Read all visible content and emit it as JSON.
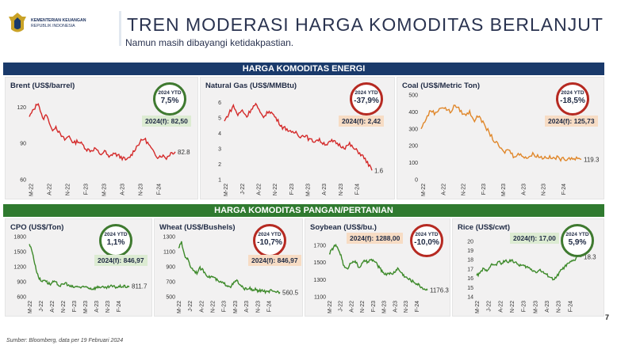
{
  "logo": {
    "line1": "KEMENTERIAN KEUANGAN",
    "line2": "REPUBLIK INDONESIA"
  },
  "header": {
    "title": "TREN MODERASI HARGA KOMODITAS BERLANJUT",
    "subtitle": "Namun masih dibayangi ketidakpastian."
  },
  "bands": {
    "energy": "HARGA KOMODITAS ENERGI",
    "food": "HARGA KOMODITAS PANGAN/PERTANIAN"
  },
  "footer": {
    "source": "Sumber: Bloomberg, data per 19 Februari 2024",
    "page": "7"
  },
  "colors": {
    "navy": "#1a3a6b",
    "green_band": "#2f7a2f",
    "line_red": "#d42a2a",
    "line_orange": "#e0872a",
    "line_green": "#3d8a2a",
    "circle_green": "#3f7a30",
    "circle_red": "#b62a22"
  },
  "chart_data": [
    {
      "id": "brent",
      "type": "line",
      "title": "Brent (US$/barrel)",
      "color": "#d42a2a",
      "ylim": [
        60,
        130
      ],
      "yticks": [
        60,
        90,
        120
      ],
      "last_label": "82.8",
      "xtick_labels": [
        "M-22",
        "A-22",
        "N-22",
        "F-23",
        "M-23",
        "A-23",
        "N-23",
        "F-24"
      ],
      "ytd_label": "2024 YTD",
      "ytd_value": "7,5%",
      "ytd_color": "green",
      "forecast": "2024(f): 82,50",
      "forecast_style": "gr",
      "values": [
        112,
        118,
        124,
        110,
        114,
        101,
        104,
        97,
        93,
        96,
        90,
        92,
        89,
        85,
        84,
        86,
        80,
        84,
        78,
        82,
        80,
        78,
        76,
        80,
        86,
        91,
        94,
        89,
        83,
        79,
        80,
        78,
        82,
        83
      ]
    },
    {
      "id": "gas",
      "type": "line",
      "title": "Natural Gas (US$/MMBtu)",
      "color": "#d42a2a",
      "ylim": [
        1,
        6.5
      ],
      "yticks": [
        1,
        2,
        3,
        4,
        5,
        6
      ],
      "last_label": "1.6",
      "xtick_labels": [
        "M-22",
        "J-22",
        "A-22",
        "N-22",
        "F-23",
        "M-23",
        "A-23",
        "N-23",
        "F-24"
      ],
      "ytd_label": "2024 YTD",
      "ytd_value": "-37,9%",
      "ytd_color": "red",
      "forecast": "2024(f): 2,42",
      "forecast_style": "pe",
      "values": [
        4.8,
        5.3,
        5.8,
        5.2,
        5.5,
        5.1,
        5.6,
        5.9,
        5.3,
        5.1,
        5.5,
        5.2,
        4.8,
        4.4,
        4.3,
        4.0,
        4.1,
        3.8,
        3.9,
        3.6,
        3.5,
        3.6,
        3.4,
        3.3,
        3.5,
        3.4,
        3.2,
        3.1,
        3.3,
        3.0,
        2.8,
        2.5,
        2.1,
        1.6
      ]
    },
    {
      "id": "coal",
      "type": "line",
      "title": "Coal (US$/Metric Ton)",
      "color": "#e0872a",
      "ylim": [
        0,
        500
      ],
      "yticks": [
        0,
        100,
        200,
        300,
        400,
        500
      ],
      "last_label": "119.3",
      "xtick_labels": [
        "M-22",
        "A-22",
        "N-22",
        "F-23",
        "M-23",
        "A-23",
        "N-23",
        "F-24"
      ],
      "ytd_label": "2024 YTD",
      "ytd_value": "-18,5%",
      "ytd_color": "red",
      "forecast": "2024(f): 125,73",
      "forecast_style": "pe",
      "values": [
        300,
        360,
        410,
        390,
        430,
        420,
        400,
        440,
        410,
        380,
        400,
        350,
        380,
        320,
        280,
        230,
        200,
        160,
        180,
        140,
        150,
        140,
        130,
        150,
        140,
        130,
        135,
        125,
        130,
        120,
        125,
        130,
        122,
        119
      ]
    },
    {
      "id": "cpo",
      "type": "line",
      "title": "CPO (US$/Ton)",
      "color": "#3d8a2a",
      "ylim": [
        600,
        1800
      ],
      "yticks": [
        600,
        900,
        1200,
        1500,
        1800
      ],
      "last_label": "811.7",
      "xtick_labels": [
        "M-22",
        "J-22",
        "A-22",
        "N-22",
        "F-23",
        "M-23",
        "A-23",
        "N-23",
        "F-24"
      ],
      "ytd_label": "2024 YTD",
      "ytd_value": "1,1%",
      "ytd_color": "green",
      "forecast": "2024(f): 846,97",
      "forecast_style": "gr",
      "values": [
        1650,
        1500,
        1200,
        1000,
        900,
        950,
        880,
        850,
        900,
        870,
        820,
        840,
        880,
        820,
        800,
        790,
        810,
        780,
        790,
        800,
        770,
        760,
        780,
        800,
        790,
        770,
        790,
        810,
        800,
        790,
        805,
        810,
        800,
        812
      ]
    },
    {
      "id": "wheat",
      "type": "line",
      "title": "Wheat (US$/Bushels)",
      "color": "#3d8a2a",
      "ylim": [
        500,
        1300
      ],
      "yticks": [
        500,
        700,
        900,
        1100,
        1300
      ],
      "last_label": "560.5",
      "xtick_labels": [
        "M-22",
        "J-22",
        "A-22",
        "N-22",
        "F-23",
        "M-23",
        "A-23",
        "N-23",
        "F-24"
      ],
      "ytd_label": "2024 YTD",
      "ytd_value": "-10,7%",
      "ytd_color": "red",
      "forecast": "2024(f): 846,97",
      "forecast_style": "pe",
      "values": [
        1150,
        1220,
        1050,
        1000,
        900,
        850,
        820,
        880,
        850,
        800,
        760,
        770,
        740,
        700,
        690,
        670,
        650,
        640,
        680,
        720,
        650,
        620,
        600,
        620,
        580,
        600,
        570,
        590,
        570,
        560,
        580,
        560,
        570,
        560
      ]
    },
    {
      "id": "soybean",
      "type": "line",
      "title": "Soybean (US$/bu.)",
      "color": "#3d8a2a",
      "ylim": [
        1100,
        1800
      ],
      "yticks": [
        1100,
        1300,
        1500,
        1700
      ],
      "last_label": "1176.3",
      "xtick_labels": [
        "M-22",
        "J-22",
        "A-22",
        "N-22",
        "F-23",
        "M-23",
        "A-23",
        "N-23",
        "F-24"
      ],
      "ytd_label": "2024 YTD",
      "ytd_value": "-10,0%",
      "ytd_color": "red",
      "forecast": "2024(f): 1288,00",
      "forecast_style": "pe",
      "values": [
        1600,
        1650,
        1700,
        1660,
        1580,
        1450,
        1420,
        1480,
        1520,
        1500,
        1440,
        1480,
        1520,
        1500,
        1530,
        1520,
        1480,
        1430,
        1390,
        1360,
        1380,
        1360,
        1390,
        1430,
        1390,
        1350,
        1320,
        1300,
        1280,
        1260,
        1240,
        1210,
        1190,
        1176
      ]
    },
    {
      "id": "rice",
      "type": "line",
      "title": "Rice (US$/cwt)",
      "color": "#3d8a2a",
      "ylim": [
        14,
        20.5
      ],
      "yticks": [
        14,
        15,
        16,
        17,
        18,
        19,
        20
      ],
      "last_label": "18.3",
      "xtick_labels": [
        "M-22",
        "J-22",
        "A-22",
        "N-22",
        "F-23",
        "M-23",
        "A-23",
        "N-23",
        "F-24"
      ],
      "ytd_label": "2024 YTD",
      "ytd_value": "5,9%",
      "ytd_color": "green",
      "forecast": "2024(f): 17,00",
      "forecast_style": "gr",
      "values": [
        16.3,
        16.5,
        17.0,
        16.8,
        17.2,
        17.5,
        17.4,
        17.8,
        17.6,
        17.9,
        17.8,
        18.0,
        17.7,
        17.5,
        17.4,
        17.3,
        17.2,
        17.0,
        16.8,
        16.7,
        16.9,
        16.6,
        16.4,
        16.2,
        15.9,
        16.0,
        16.6,
        17.0,
        17.3,
        17.6,
        17.8,
        18.0,
        18.6,
        18.3
      ]
    }
  ]
}
